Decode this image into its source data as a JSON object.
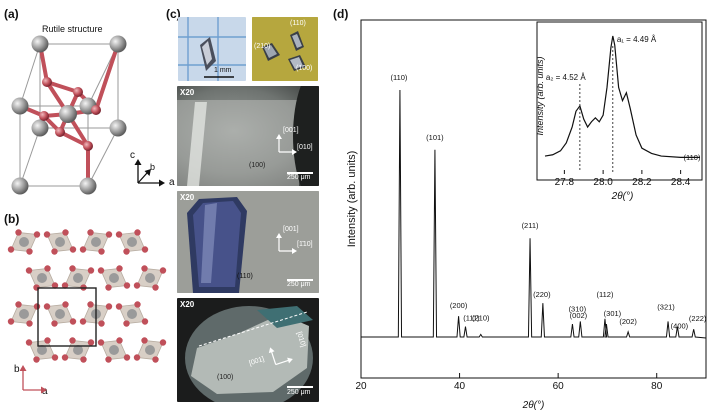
{
  "panels": {
    "a": {
      "label": "(a)",
      "title": "Rutile structure",
      "axes": {
        "c": "c",
        "b": "b",
        "a": "a"
      }
    },
    "b": {
      "label": "(b)",
      "axes": {
        "b": "b",
        "a": "a"
      }
    },
    "c": {
      "label": "(c)",
      "photo1_scale": "1 mm",
      "photo2_facets": [
        "(110)",
        "(210)",
        "(100)"
      ],
      "micrographs": [
        {
          "zoom": "X20",
          "dir1": "[001]",
          "dir2": "[010]",
          "face": "(100)",
          "scale": "250 μm"
        },
        {
          "zoom": "X20",
          "dir1": "[001]",
          "dir2": "[1̄10]",
          "face": "(110)",
          "scale": "250 μm"
        },
        {
          "zoom": "X20",
          "dir1": "[001]",
          "dir2": "[010]",
          "face": "(100)",
          "scale": "250 μm"
        }
      ]
    },
    "d": {
      "label": "(d)"
    }
  },
  "colors": {
    "titanium": "#9a9a9a",
    "oxygen": "#c0505a",
    "octahedron": "#d8cfc6",
    "trace": "#111111"
  },
  "chart_data": [
    {
      "type": "line",
      "title": "",
      "xlabel": "2θ(°)",
      "ylabel": "Intensity (arb. units)",
      "xlim": [
        20,
        90
      ],
      "xticks": [
        20,
        40,
        60,
        80
      ],
      "xtick_labels": [
        "20",
        "40",
        "60",
        "80"
      ],
      "peaks": [
        {
          "x": 27.9,
          "height": 0.95,
          "label": "(110)"
        },
        {
          "x": 35.0,
          "height": 0.72,
          "label": "(101)"
        },
        {
          "x": 39.8,
          "height": 0.08,
          "label": "(200)"
        },
        {
          "x": 41.2,
          "height": 0.04,
          "label": "(111)"
        },
        {
          "x": 44.3,
          "height": 0.01,
          "label": "(210)"
        },
        {
          "x": 54.3,
          "height": 0.38,
          "label": "(211)"
        },
        {
          "x": 56.9,
          "height": 0.13,
          "label": "(220)"
        },
        {
          "x": 62.9,
          "height": 0.05,
          "label": "(002)"
        },
        {
          "x": 64.5,
          "height": 0.06,
          "label": "(310)"
        },
        {
          "x": 69.5,
          "height": 0.07,
          "label": "(112)"
        },
        {
          "x": 69.8,
          "height": 0.05,
          "label": "(301)"
        },
        {
          "x": 74.2,
          "height": 0.02,
          "label": "(202)"
        },
        {
          "x": 82.3,
          "height": 0.06,
          "label": "(321)"
        },
        {
          "x": 84.2,
          "height": 0.04,
          "label": "(400)"
        },
        {
          "x": 87.5,
          "height": 0.03,
          "label": "(222)"
        }
      ]
    },
    {
      "type": "line",
      "title": "",
      "xlabel": "2θ(°)",
      "ylabel": "Intensity (arb. units)",
      "xlim": [
        27.7,
        28.5
      ],
      "xticks": [
        27.8,
        28.0,
        28.2,
        28.4
      ],
      "xtick_labels": [
        "27.8",
        "28.0",
        "28.2",
        "28.4"
      ],
      "peak_label": "(110)",
      "annotations": [
        {
          "x": 28.05,
          "label": "a₁ = 4.49 Å"
        },
        {
          "x": 27.88,
          "label": "a₂ = 4.52 Å"
        }
      ],
      "points": {
        "x": [
          27.7,
          27.74,
          27.78,
          27.81,
          27.84,
          27.86,
          27.88,
          27.9,
          27.92,
          27.94,
          27.96,
          27.98,
          28.0,
          28.02,
          28.04,
          28.05,
          28.06,
          28.08,
          28.1,
          28.12,
          28.14,
          28.17,
          28.2,
          28.25,
          28.3,
          28.4,
          28.5
        ],
        "y": [
          0.06,
          0.07,
          0.1,
          0.16,
          0.28,
          0.4,
          0.44,
          0.34,
          0.28,
          0.32,
          0.35,
          0.32,
          0.37,
          0.58,
          0.88,
          0.97,
          0.9,
          0.58,
          0.48,
          0.54,
          0.42,
          0.22,
          0.12,
          0.08,
          0.06,
          0.05,
          0.05
        ]
      }
    }
  ]
}
